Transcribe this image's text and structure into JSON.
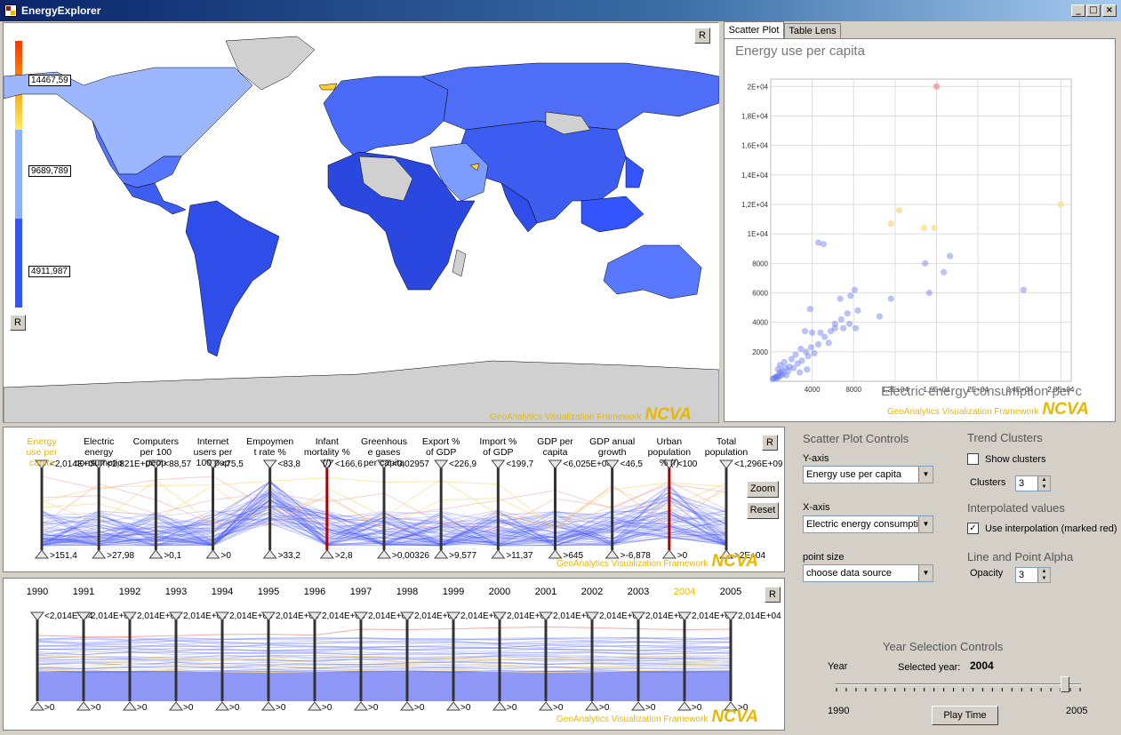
{
  "window": {
    "title": "EnergyExplorer",
    "min": "_",
    "max": "□",
    "close": "×"
  },
  "map": {
    "reset_label": "R",
    "legend_values": [
      "14467,59",
      "9689,789",
      "4911,987"
    ],
    "credit": "GeoAnalytics Visualization Framework",
    "ncva": "NCVA"
  },
  "scatter": {
    "tabs": [
      "Scatter Plot",
      "Table Lens"
    ],
    "credit": "GeoAnalytics Visualization Framework",
    "ncva": "NCVA"
  },
  "chart_data": {
    "type": "scatter",
    "title": "Energy use per capita",
    "xlabel": "Electric energy consumption per c",
    "ylabel": "",
    "xlim": [
      0,
      29000
    ],
    "ylim": [
      0,
      20500
    ],
    "xticks": [
      "4000",
      "8000",
      "1,2E+04",
      "1,6E+04",
      "2E+04",
      "2,4E+04",
      "2,8E+04"
    ],
    "yticks": [
      "2000",
      "4000",
      "6000",
      "8000",
      "1E+04",
      "1,2E+04",
      "1,4E+04",
      "1,6E+04",
      "1,8E+04",
      "2E+04"
    ],
    "grid": true,
    "points_high": [
      {
        "x": 16000,
        "y": 20000,
        "color": "#f4a0a0"
      },
      {
        "x": 28000,
        "y": 12000,
        "color": "#f8e0a0"
      },
      {
        "x": 12400,
        "y": 11600,
        "color": "#f8e0a0"
      },
      {
        "x": 11600,
        "y": 10700,
        "color": "#f8e0a0"
      },
      {
        "x": 14800,
        "y": 10400,
        "color": "#f8e0a0"
      },
      {
        "x": 15800,
        "y": 10400,
        "color": "#f8e0a0"
      }
    ],
    "points_low": [
      [
        4600,
        9400
      ],
      [
        5100,
        9300
      ],
      [
        17300,
        8500
      ],
      [
        14900,
        8000
      ],
      [
        16700,
        7400
      ],
      [
        24400,
        6200
      ],
      [
        15300,
        6000
      ],
      [
        11600,
        5600
      ],
      [
        8100,
        6200
      ],
      [
        7700,
        5800
      ],
      [
        6700,
        5600
      ],
      [
        3800,
        4900
      ],
      [
        10500,
        4400
      ],
      [
        8400,
        4800
      ],
      [
        7400,
        4600
      ],
      [
        6800,
        4200
      ],
      [
        6200,
        3900
      ],
      [
        7000,
        3600
      ],
      [
        5800,
        3400
      ],
      [
        4800,
        3300
      ],
      [
        3300,
        3400
      ],
      [
        4000,
        3300
      ],
      [
        5200,
        3000
      ],
      [
        6200,
        3600
      ],
      [
        7600,
        3900
      ],
      [
        8200,
        3600
      ],
      [
        5600,
        2600
      ],
      [
        4600,
        2500
      ],
      [
        3900,
        2300
      ],
      [
        3400,
        2000
      ],
      [
        2900,
        2200
      ],
      [
        2400,
        1800
      ],
      [
        2000,
        1500
      ],
      [
        2600,
        1200
      ],
      [
        1800,
        1000
      ],
      [
        1400,
        900
      ],
      [
        1100,
        700
      ],
      [
        900,
        600
      ],
      [
        700,
        400
      ],
      [
        500,
        300
      ],
      [
        400,
        250
      ],
      [
        300,
        200
      ],
      [
        200,
        150
      ],
      [
        1200,
        500
      ],
      [
        1500,
        400
      ],
      [
        1700,
        700
      ],
      [
        2200,
        900
      ],
      [
        3000,
        1400
      ],
      [
        3600,
        1700
      ],
      [
        4200,
        1900
      ],
      [
        700,
        800
      ],
      [
        900,
        1100
      ],
      [
        1300,
        1300
      ],
      [
        600,
        200
      ],
      [
        800,
        300
      ],
      [
        1000,
        400
      ],
      [
        2800,
        600
      ],
      [
        3500,
        800
      ]
    ]
  },
  "pcp": {
    "reset_label": "R",
    "zoom_label": "Zoom",
    "reset_btn_label": "Reset",
    "credit": "GeoAnalytics Visualization Framework",
    "ncva": "NCVA",
    "axes": [
      {
        "name": "Energy\nuse per\ncapita",
        "top": "<2,014E+04",
        "bottom": ">151,4",
        "highlight": true
      },
      {
        "name": "Electric\nenergy\nconsumptio",
        "top": "<2,821E+04",
        "bottom": ">27,98"
      },
      {
        "name": "Computers\nper 100\npeop",
        "top": "<88,57",
        "bottom": ">0,1"
      },
      {
        "name": "Internet\nusers per\n100 pop",
        "top": "<75,5",
        "bottom": ">0"
      },
      {
        "name": "Empoymen\nt rate %",
        "top": "<83,8",
        "bottom": ">33,2"
      },
      {
        "name": "Infant\nmortality %\n(/)",
        "top": "<166,6",
        "bottom": ">2,8",
        "red": true
      },
      {
        "name": "Greenhous\ne gases\nper capita",
        "top": "<0,02957",
        "bottom": ">0,00326"
      },
      {
        "name": "Export %\nof GDP",
        "top": "<226,9",
        "bottom": ">9,577"
      },
      {
        "name": "Import %\nof GDP",
        "top": "<199,7",
        "bottom": ">11,37"
      },
      {
        "name": "GDP per\ncapita",
        "top": "<6,025E+04",
        "bottom": ">645"
      },
      {
        "name": "GDP anual\ngrowth",
        "top": "<46,5",
        "bottom": ">-6,878"
      },
      {
        "name": "Urban\npopulation\n% (/)",
        "top": "<100",
        "bottom": ">0",
        "red": true
      },
      {
        "name": "Total\npopulation",
        "top": "<1,296E+09",
        "bottom": ">2E+04"
      }
    ]
  },
  "years": {
    "reset_label": "R",
    "credit": "GeoAnalytics Visualization Framework",
    "ncva": "NCVA",
    "list": [
      "1990",
      "1991",
      "1992",
      "1993",
      "1994",
      "1995",
      "1996",
      "1997",
      "1998",
      "1999",
      "2000",
      "2001",
      "2002",
      "2003",
      "2004",
      "2005"
    ],
    "selected": "2004",
    "first_top": "<2,014E+04",
    "top_value": "2,014E+04",
    "bottom_value": ">0"
  },
  "controls": {
    "scatter_title": "Scatter Plot Controls",
    "yaxis_label": "Y-axis",
    "yaxis_value": "Energy use per capita",
    "xaxis_label": "X-axis",
    "xaxis_value": "Electric energy consumpti",
    "pointsize_label": "point size",
    "pointsize_value": "choose data source",
    "trend_title": "Trend Clusters",
    "show_clusters": "Show clusters",
    "clusters_label": "Clusters",
    "clusters_value": "3",
    "interp_title": "Interpolated values",
    "use_interp": "Use interpolation (marked red)",
    "alpha_title": "Line and Point Alpha",
    "opacity_label": "Opacity",
    "opacity_value": "3",
    "year_title": "Year Selection Controls",
    "year_label": "Year",
    "selected_year_label": "Selected year:",
    "selected_year": "2004",
    "year_min": "1990",
    "year_max": "2005",
    "play_label": "Play Time",
    "slider_fraction": 0.933
  }
}
